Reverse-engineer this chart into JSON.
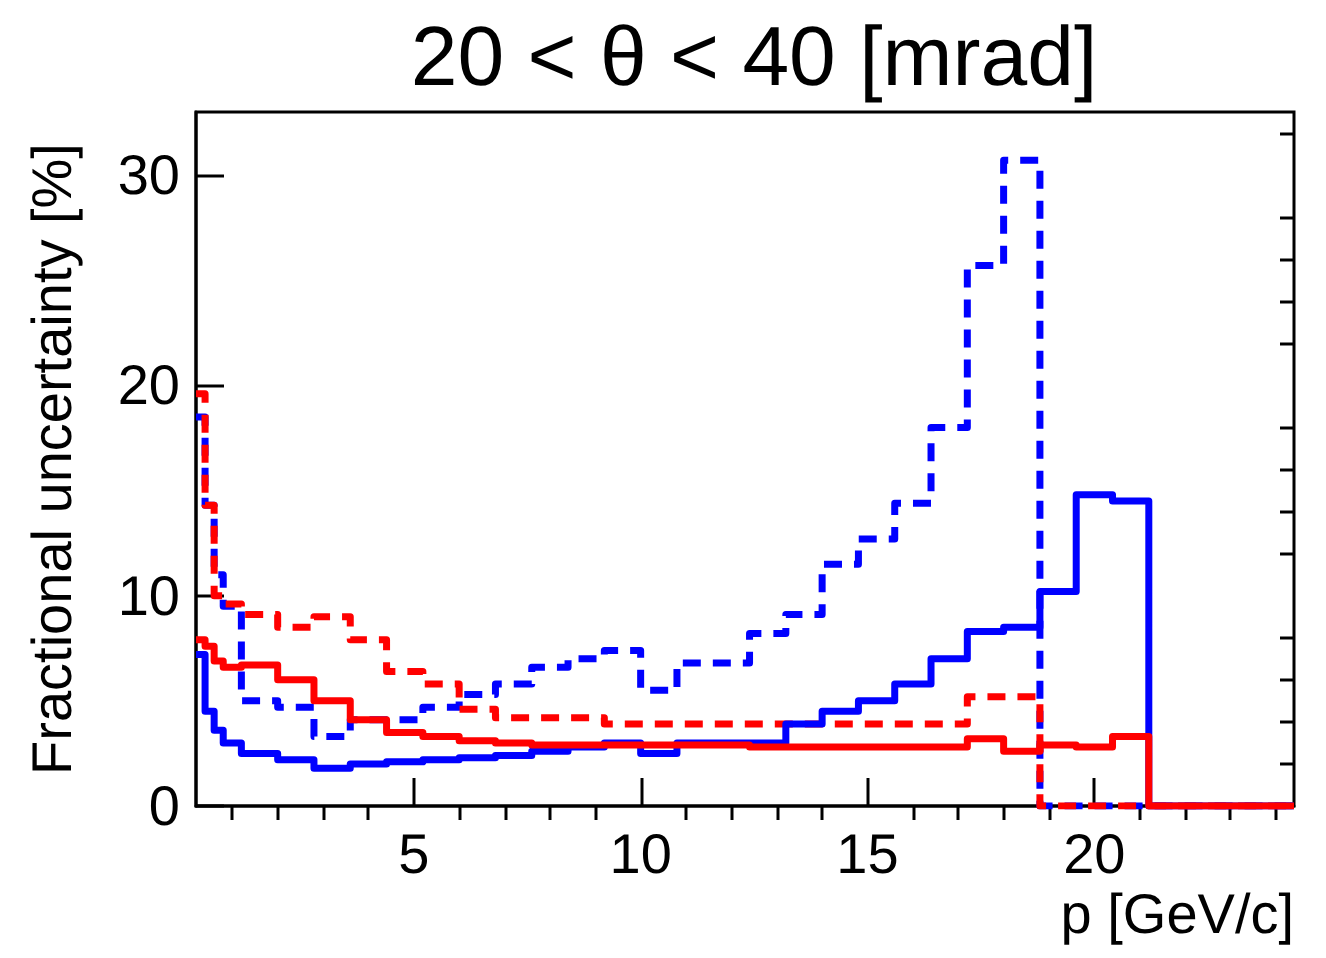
{
  "chart_data": {
    "type": "histogram",
    "title": "20 < θ < 40 [mrad]",
    "xlabel": "p [GeV/c]",
    "ylabel": "Fractional uncertainty [%]",
    "bins": [
      0.2,
      0.4,
      0.6,
      0.8,
      1.2,
      2.0,
      2.8,
      3.6,
      4.4,
      5.2,
      6.0,
      6.8,
      7.6,
      8.4,
      9.2,
      10.0,
      10.8,
      11.6,
      12.4,
      13.2,
      14.0,
      14.8,
      15.6,
      16.4,
      17.2,
      18.0,
      18.8,
      19.6,
      20.4,
      21.2,
      22.0,
      22.8,
      23.6,
      24.4
    ],
    "series": [
      {
        "color": "#0000ff",
        "line_style": "solid",
        "values": [
          7.2,
          4.5,
          3.6,
          3.0,
          2.5,
          2.2,
          1.8,
          2.0,
          2.1,
          2.2,
          2.3,
          2.4,
          2.6,
          2.8,
          3.0,
          2.5,
          3.0,
          3.0,
          3.0,
          3.9,
          4.5,
          5.0,
          5.8,
          7.0,
          8.3,
          8.5,
          10.2,
          14.8,
          14.5,
          0,
          0,
          0,
          0
        ]
      },
      {
        "color": "#0000ff",
        "line_style": "dashed",
        "values": [
          18.5,
          14.3,
          11.0,
          9.5,
          5.0,
          4.7,
          3.3,
          4.1,
          4.1,
          4.7,
          5.3,
          5.8,
          6.6,
          7.0,
          7.4,
          5.5,
          6.8,
          6.8,
          8.2,
          9.1,
          11.5,
          12.7,
          14.4,
          18.0,
          25.7,
          30.7,
          0,
          0,
          0,
          0,
          0,
          0,
          0
        ]
      },
      {
        "color": "#ff0000",
        "line_style": "solid",
        "values": [
          7.9,
          7.6,
          6.9,
          6.6,
          6.7,
          6.0,
          5.0,
          4.1,
          3.5,
          3.3,
          3.1,
          3.0,
          2.9,
          2.9,
          2.9,
          2.9,
          2.9,
          2.9,
          2.8,
          2.8,
          2.8,
          2.8,
          2.8,
          2.8,
          3.2,
          2.6,
          2.9,
          2.8,
          3.3,
          0,
          0,
          0,
          0
        ]
      },
      {
        "color": "#ff0000",
        "line_style": "dashed",
        "values": [
          19.6,
          14.3,
          10.0,
          9.6,
          9.1,
          8.5,
          9.0,
          7.9,
          6.4,
          5.8,
          4.6,
          4.2,
          4.2,
          4.2,
          3.9,
          3.9,
          3.9,
          3.9,
          3.9,
          3.9,
          3.9,
          3.9,
          3.9,
          3.9,
          5.2,
          5.2,
          0,
          0,
          0,
          0,
          0,
          0,
          0
        ]
      }
    ],
    "xlim": [
      0.2,
      24.4
    ],
    "xticks": [
      {
        "value": 1,
        "label": null
      },
      {
        "value": 2,
        "label": null
      },
      {
        "value": 3,
        "label": null
      },
      {
        "value": 4,
        "label": null
      },
      5,
      {
        "value": 6,
        "label": null
      },
      {
        "value": 7,
        "label": null
      },
      {
        "value": 8,
        "label": null
      },
      {
        "value": 9,
        "label": null
      },
      10,
      {
        "value": 11,
        "label": null
      },
      {
        "value": 12,
        "label": null
      },
      {
        "value": 13,
        "label": null
      },
      {
        "value": 14,
        "label": null
      },
      15,
      {
        "value": 16,
        "label": null
      },
      {
        "value": 17,
        "label": null
      },
      {
        "value": 18,
        "label": null
      },
      {
        "value": 19,
        "label": null
      },
      20,
      {
        "value": 21,
        "label": null
      },
      {
        "value": 22,
        "label": null
      },
      {
        "value": 23,
        "label": null
      },
      {
        "value": 24,
        "label": null
      }
    ],
    "ylim": [
      0,
      33
    ],
    "yticks": [
      0,
      {
        "value": 2,
        "label": null
      },
      {
        "value": 4,
        "label": null
      },
      {
        "value": 6,
        "label": null
      },
      {
        "value": 8,
        "label": null
      },
      10,
      {
        "value": 12,
        "label": null
      },
      {
        "value": 14,
        "label": null
      },
      {
        "value": 16,
        "label": null
      },
      {
        "value": 18,
        "label": null
      },
      20,
      {
        "value": 22,
        "label": null
      },
      {
        "value": 24,
        "label": null
      },
      {
        "value": 26,
        "label": null
      },
      {
        "value": 28,
        "label": null
      },
      30,
      {
        "value": 32,
        "label": null
      }
    ]
  }
}
